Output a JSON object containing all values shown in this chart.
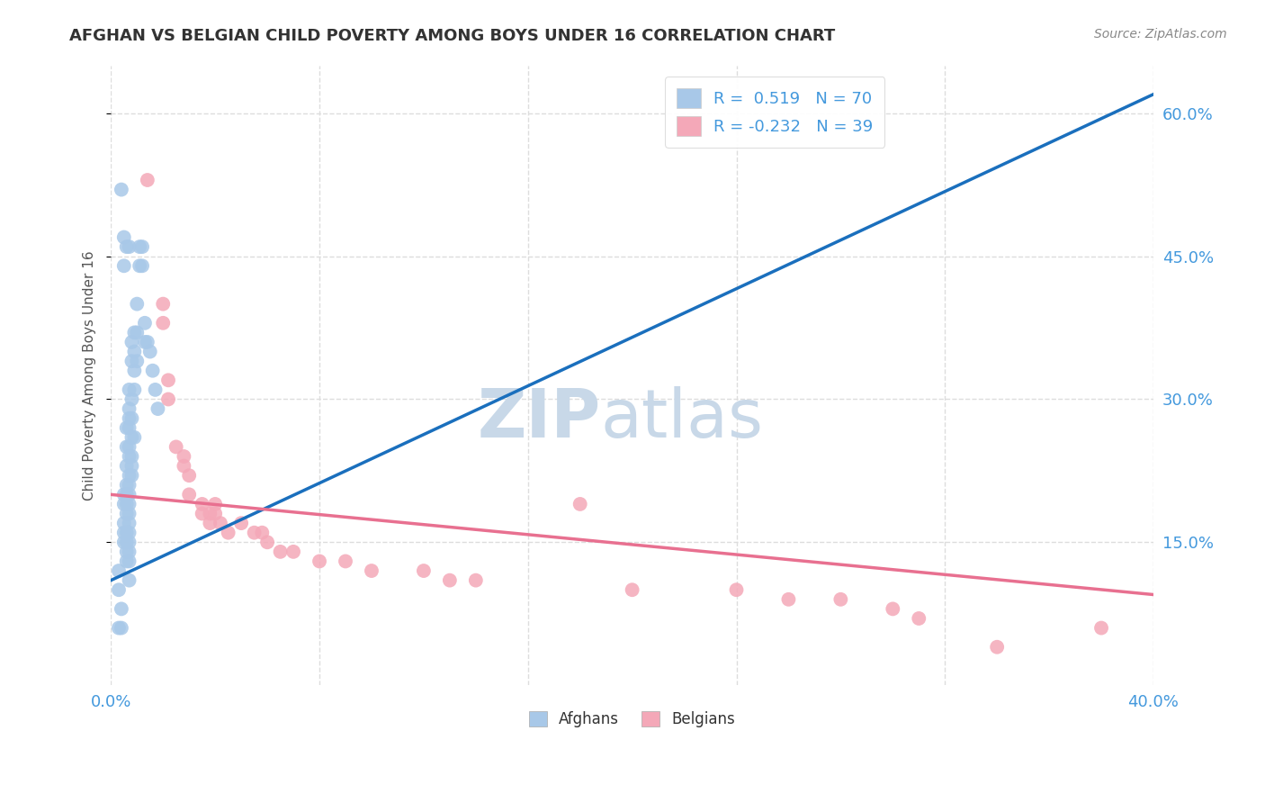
{
  "title": "AFGHAN VS BELGIAN CHILD POVERTY AMONG BOYS UNDER 16 CORRELATION CHART",
  "source": "Source: ZipAtlas.com",
  "ylabel": "Child Poverty Among Boys Under 16",
  "xlim": [
    0.0,
    0.4
  ],
  "ylim": [
    0.0,
    0.65
  ],
  "xticks": [
    0.0,
    0.08,
    0.16,
    0.24,
    0.32,
    0.4
  ],
  "xticklabels": [
    "0.0%",
    "",
    "",
    "",
    "",
    "40.0%"
  ],
  "yticks_right": [
    0.15,
    0.3,
    0.45,
    0.6
  ],
  "yticklabels_right": [
    "15.0%",
    "30.0%",
    "45.0%",
    "60.0%"
  ],
  "afghan_R": "0.519",
  "afghan_N": "70",
  "belgian_R": "-0.232",
  "belgian_N": "39",
  "afghan_color": "#a8c8e8",
  "belgian_color": "#f4a8b8",
  "afghan_line_color": "#1a6fbd",
  "belgian_line_color": "#e87090",
  "watermark_part1": "ZIP",
  "watermark_part2": "atlas",
  "watermark_color": "#c8d8e8",
  "background_color": "#ffffff",
  "grid_color": "#dddddd",
  "tick_color": "#4499dd",
  "legend_text_color": "#4499dd",
  "afghan_scatter": [
    [
      0.003,
      0.12
    ],
    [
      0.003,
      0.1
    ],
    [
      0.004,
      0.08
    ],
    [
      0.004,
      0.06
    ],
    [
      0.004,
      0.52
    ],
    [
      0.005,
      0.47
    ],
    [
      0.005,
      0.44
    ],
    [
      0.005,
      0.2
    ],
    [
      0.005,
      0.19
    ],
    [
      0.005,
      0.17
    ],
    [
      0.005,
      0.16
    ],
    [
      0.005,
      0.15
    ],
    [
      0.006,
      0.46
    ],
    [
      0.006,
      0.27
    ],
    [
      0.006,
      0.25
    ],
    [
      0.006,
      0.23
    ],
    [
      0.006,
      0.21
    ],
    [
      0.006,
      0.2
    ],
    [
      0.006,
      0.19
    ],
    [
      0.006,
      0.18
    ],
    [
      0.006,
      0.16
    ],
    [
      0.006,
      0.15
    ],
    [
      0.006,
      0.14
    ],
    [
      0.006,
      0.13
    ],
    [
      0.007,
      0.46
    ],
    [
      0.007,
      0.31
    ],
    [
      0.007,
      0.29
    ],
    [
      0.007,
      0.28
    ],
    [
      0.007,
      0.27
    ],
    [
      0.007,
      0.25
    ],
    [
      0.007,
      0.24
    ],
    [
      0.007,
      0.22
    ],
    [
      0.007,
      0.21
    ],
    [
      0.007,
      0.2
    ],
    [
      0.007,
      0.19
    ],
    [
      0.007,
      0.18
    ],
    [
      0.007,
      0.17
    ],
    [
      0.007,
      0.16
    ],
    [
      0.007,
      0.15
    ],
    [
      0.007,
      0.14
    ],
    [
      0.007,
      0.13
    ],
    [
      0.007,
      0.11
    ],
    [
      0.008,
      0.36
    ],
    [
      0.008,
      0.34
    ],
    [
      0.008,
      0.3
    ],
    [
      0.008,
      0.28
    ],
    [
      0.008,
      0.26
    ],
    [
      0.008,
      0.24
    ],
    [
      0.008,
      0.23
    ],
    [
      0.008,
      0.22
    ],
    [
      0.009,
      0.37
    ],
    [
      0.009,
      0.35
    ],
    [
      0.009,
      0.33
    ],
    [
      0.009,
      0.31
    ],
    [
      0.009,
      0.26
    ],
    [
      0.01,
      0.4
    ],
    [
      0.01,
      0.37
    ],
    [
      0.01,
      0.34
    ],
    [
      0.011,
      0.46
    ],
    [
      0.011,
      0.44
    ],
    [
      0.012,
      0.46
    ],
    [
      0.012,
      0.44
    ],
    [
      0.013,
      0.38
    ],
    [
      0.013,
      0.36
    ],
    [
      0.014,
      0.36
    ],
    [
      0.015,
      0.35
    ],
    [
      0.016,
      0.33
    ],
    [
      0.017,
      0.31
    ],
    [
      0.018,
      0.29
    ],
    [
      0.003,
      0.06
    ]
  ],
  "belgian_scatter": [
    [
      0.014,
      0.53
    ],
    [
      0.02,
      0.4
    ],
    [
      0.02,
      0.38
    ],
    [
      0.022,
      0.32
    ],
    [
      0.022,
      0.3
    ],
    [
      0.025,
      0.25
    ],
    [
      0.028,
      0.24
    ],
    [
      0.028,
      0.23
    ],
    [
      0.03,
      0.22
    ],
    [
      0.03,
      0.2
    ],
    [
      0.035,
      0.19
    ],
    [
      0.035,
      0.18
    ],
    [
      0.038,
      0.18
    ],
    [
      0.038,
      0.17
    ],
    [
      0.04,
      0.19
    ],
    [
      0.04,
      0.18
    ],
    [
      0.042,
      0.17
    ],
    [
      0.045,
      0.16
    ],
    [
      0.05,
      0.17
    ],
    [
      0.055,
      0.16
    ],
    [
      0.058,
      0.16
    ],
    [
      0.06,
      0.15
    ],
    [
      0.065,
      0.14
    ],
    [
      0.07,
      0.14
    ],
    [
      0.08,
      0.13
    ],
    [
      0.09,
      0.13
    ],
    [
      0.1,
      0.12
    ],
    [
      0.12,
      0.12
    ],
    [
      0.13,
      0.11
    ],
    [
      0.14,
      0.11
    ],
    [
      0.18,
      0.19
    ],
    [
      0.2,
      0.1
    ],
    [
      0.24,
      0.1
    ],
    [
      0.26,
      0.09
    ],
    [
      0.28,
      0.09
    ],
    [
      0.3,
      0.08
    ],
    [
      0.31,
      0.07
    ],
    [
      0.34,
      0.04
    ],
    [
      0.38,
      0.06
    ]
  ],
  "afghan_trendline": [
    [
      0.0,
      0.11
    ],
    [
      0.4,
      0.62
    ]
  ],
  "belgian_trendline": [
    [
      0.0,
      0.2
    ],
    [
      0.4,
      0.095
    ]
  ],
  "figsize": [
    14.06,
    8.92
  ],
  "dpi": 100
}
